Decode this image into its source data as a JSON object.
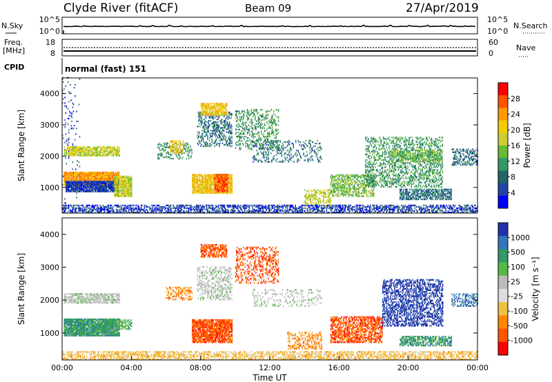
{
  "header": {
    "station": "Clyde River (fitACF)",
    "beam": "Beam 09",
    "date": "27/Apr/2019"
  },
  "strip_nsky": {
    "left_label": "N.Sky",
    "left_ticks": [
      "10^5",
      "10^0"
    ],
    "right_ticks": [
      "10^5",
      "10^0"
    ],
    "right_label": "N.Search"
  },
  "strip_freq": {
    "left_label_1": "Freq.",
    "left_label_2": "[MHz]",
    "left_ticks": [
      "18",
      "8"
    ],
    "right_ticks": [
      "60",
      "0"
    ],
    "right_label": "Nave"
  },
  "cpid": {
    "label": "CPID",
    "mode": "normal (fast) 151"
  },
  "chart_data": [
    {
      "type": "heatmap",
      "quantity": "Power",
      "ylabel": "Slant Range [km]",
      "yticks": [
        "4000",
        "3000",
        "2000",
        "1000"
      ],
      "ytick_values": [
        4000,
        3000,
        2000,
        1000
      ],
      "ylim": [
        180,
        4500
      ],
      "xlim": [
        0,
        24
      ],
      "colorbar": {
        "label": "Power [dB]",
        "ticks": [
          "28",
          "24",
          "20",
          "16",
          "12",
          "8",
          "4"
        ],
        "colors": [
          "#ff0000",
          "#ff5500",
          "#ff9900",
          "#f2cc00",
          "#cccc33",
          "#66bb33",
          "#339966",
          "#226666",
          "#2244aa",
          "#0000ff"
        ]
      },
      "regions": [
        {
          "t0": 0.0,
          "t1": 1.0,
          "r0": 300,
          "r1": 4500,
          "level": 1,
          "density": 0.05
        },
        {
          "t0": 0.1,
          "t1": 3.3,
          "r0": 2000,
          "r1": 2300,
          "level": 5,
          "density": 0.7
        },
        {
          "t0": 0.1,
          "t1": 3.3,
          "r0": 1050,
          "r1": 1500,
          "level": 7,
          "density": 0.9
        },
        {
          "t0": 0.2,
          "t1": 3.3,
          "r0": 850,
          "r1": 1200,
          "level": 1,
          "density": 0.9
        },
        {
          "t0": 3.0,
          "t1": 4.0,
          "r0": 700,
          "r1": 1350,
          "level": 5,
          "density": 0.8
        },
        {
          "t0": 5.5,
          "t1": 7.5,
          "r0": 1900,
          "r1": 2400,
          "level": 3,
          "density": 0.25
        },
        {
          "t0": 6.2,
          "t1": 7.0,
          "r0": 2100,
          "r1": 2500,
          "level": 6,
          "density": 0.5
        },
        {
          "t0": 7.5,
          "t1": 9.8,
          "r0": 800,
          "r1": 1400,
          "level": 6,
          "density": 0.8
        },
        {
          "t0": 8.8,
          "t1": 9.6,
          "r0": 850,
          "r1": 1400,
          "level": 8,
          "density": 0.8
        },
        {
          "t0": 7.8,
          "t1": 9.8,
          "r0": 2300,
          "r1": 3400,
          "level": 2,
          "density": 0.35
        },
        {
          "t0": 8.0,
          "t1": 9.5,
          "r0": 3300,
          "r1": 3700,
          "level": 6,
          "density": 0.7
        },
        {
          "t0": 10.0,
          "t1": 12.5,
          "r0": 2200,
          "r1": 3500,
          "level": 3,
          "density": 0.3
        },
        {
          "t0": 11.0,
          "t1": 15.0,
          "r0": 1800,
          "r1": 2500,
          "level": 2,
          "density": 0.2
        },
        {
          "t0": 14.0,
          "t1": 15.5,
          "r0": 400,
          "r1": 900,
          "level": 5,
          "density": 0.4
        },
        {
          "t0": 15.5,
          "t1": 18.0,
          "r0": 700,
          "r1": 1400,
          "level": 4,
          "density": 0.5
        },
        {
          "t0": 17.5,
          "t1": 22.0,
          "r0": 1000,
          "r1": 2600,
          "level": 3,
          "density": 0.35
        },
        {
          "t0": 19.0,
          "t1": 22.0,
          "r0": 1800,
          "r1": 2200,
          "level": 4,
          "density": 0.4
        },
        {
          "t0": 19.5,
          "t1": 22.5,
          "r0": 600,
          "r1": 950,
          "level": 2,
          "density": 0.6
        },
        {
          "t0": 22.5,
          "t1": 24.0,
          "r0": 1700,
          "r1": 2200,
          "level": 2,
          "density": 0.4
        },
        {
          "t0": 0.0,
          "t1": 24.0,
          "r0": 180,
          "r1": 450,
          "level": 1,
          "density": 0.5
        }
      ]
    },
    {
      "type": "heatmap",
      "quantity": "Velocity",
      "ylabel": "Slant Range [km]",
      "yticks": [
        "4000",
        "3000",
        "2000",
        "1000"
      ],
      "ytick_values": [
        4000,
        3000,
        2000,
        1000
      ],
      "ylim": [
        180,
        4500
      ],
      "xlim": [
        0,
        24
      ],
      "xticks": [
        "00:00",
        "04:00",
        "08:00",
        "12:00",
        "16:00",
        "20:00",
        "00:00"
      ],
      "xtick_values": [
        0,
        4,
        8,
        12,
        16,
        20,
        24
      ],
      "xlabel": "Time UT",
      "colorbar": {
        "label": "Velocity [m s⁻¹]",
        "ticks": [
          "1000",
          "500",
          "100",
          "25",
          "-25",
          "-100",
          "-500",
          "-1000"
        ],
        "colors": [
          "#2233aa",
          "#3377bb",
          "#339966",
          "#55bb44",
          "#bbbbbb",
          "#dddddd",
          "#f0c040",
          "#ff8800",
          "#ff5500",
          "#ff0000"
        ]
      },
      "regions": [
        {
          "t0": 0.1,
          "t1": 3.3,
          "r0": 1900,
          "r1": 2200,
          "level": 4,
          "density": 0.7
        },
        {
          "t0": 0.1,
          "t1": 3.3,
          "r0": 900,
          "r1": 1400,
          "level": 2,
          "density": 0.9
        },
        {
          "t0": 3.0,
          "t1": 4.0,
          "r0": 1100,
          "r1": 1400,
          "level": 3,
          "density": 0.6
        },
        {
          "t0": 6.0,
          "t1": 7.5,
          "r0": 2000,
          "r1": 2400,
          "level": 7,
          "density": 0.4
        },
        {
          "t0": 7.5,
          "t1": 9.8,
          "r0": 700,
          "r1": 1400,
          "level": 8,
          "density": 0.8
        },
        {
          "t0": 7.8,
          "t1": 9.8,
          "r0": 2000,
          "r1": 3000,
          "level": 4,
          "density": 0.35
        },
        {
          "t0": 8.0,
          "t1": 9.5,
          "r0": 3300,
          "r1": 3700,
          "level": 8,
          "density": 0.6
        },
        {
          "t0": 10.0,
          "t1": 12.5,
          "r0": 2500,
          "r1": 3600,
          "level": 8,
          "density": 0.3
        },
        {
          "t0": 11.0,
          "t1": 15.0,
          "r0": 1800,
          "r1": 2300,
          "level": 4,
          "density": 0.2
        },
        {
          "t0": 13.0,
          "t1": 15.0,
          "r0": 500,
          "r1": 1000,
          "level": 7,
          "density": 0.3
        },
        {
          "t0": 15.5,
          "t1": 18.5,
          "r0": 700,
          "r1": 1500,
          "level": 8,
          "density": 0.6
        },
        {
          "t0": 18.5,
          "t1": 22.0,
          "r0": 1200,
          "r1": 2600,
          "level": 0,
          "density": 0.45
        },
        {
          "t0": 19.5,
          "t1": 22.5,
          "r0": 600,
          "r1": 900,
          "level": 2,
          "density": 0.6
        },
        {
          "t0": 22.5,
          "t1": 24.0,
          "r0": 1800,
          "r1": 2200,
          "level": 1,
          "density": 0.4
        },
        {
          "t0": 0.0,
          "t1": 24.0,
          "r0": 180,
          "r1": 450,
          "level": 6,
          "density": 0.5
        }
      ]
    }
  ]
}
